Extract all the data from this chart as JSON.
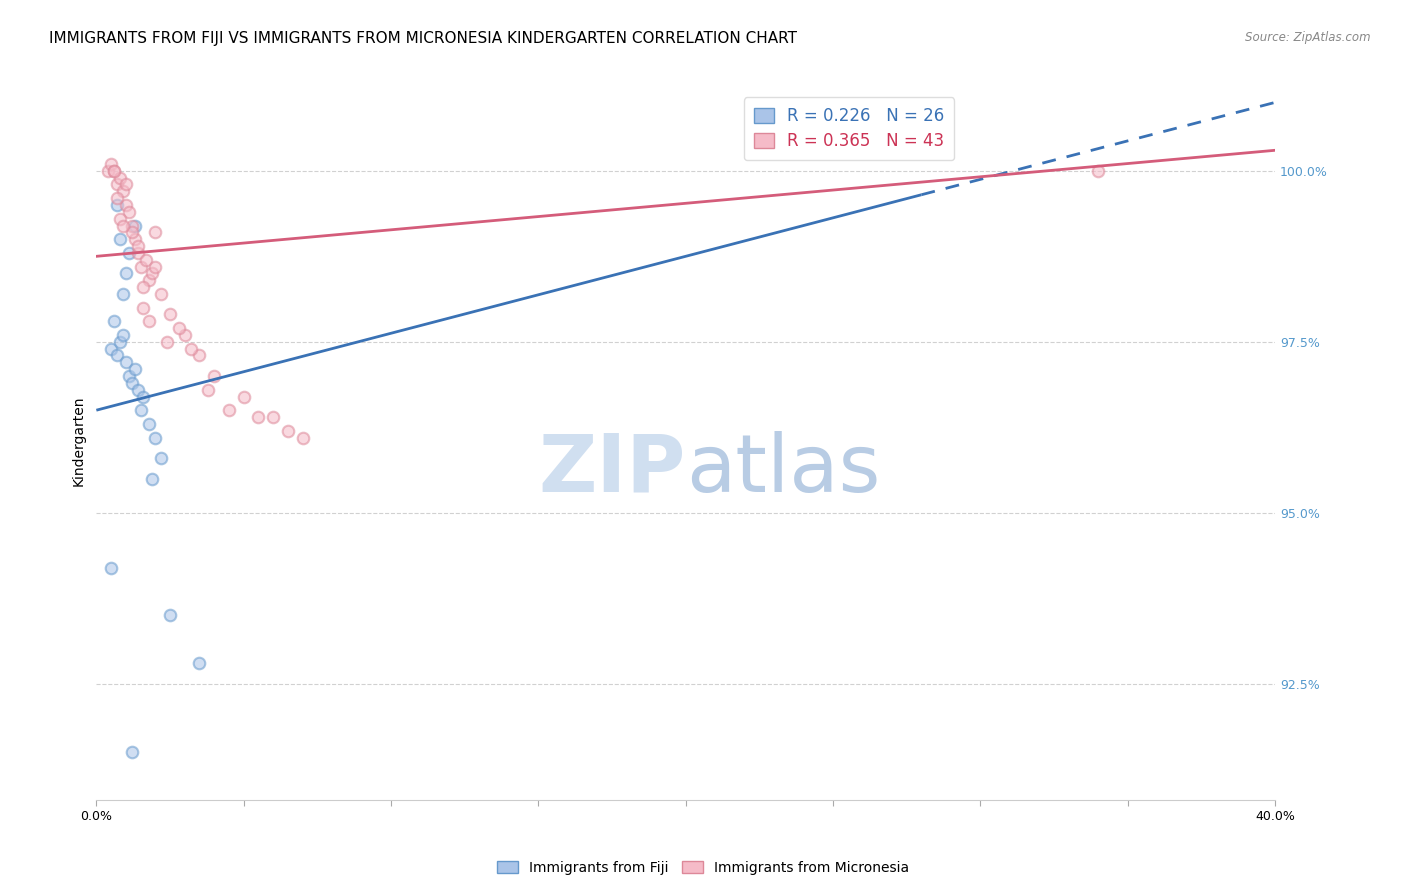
{
  "title": "IMMIGRANTS FROM FIJI VS IMMIGRANTS FROM MICRONESIA KINDERGARTEN CORRELATION CHART",
  "source": "Source: ZipAtlas.com",
  "ylabel": "Kindergarten",
  "ylabel_right_ticks": [
    100.0,
    97.5,
    95.0,
    92.5
  ],
  "ylabel_right_labels": [
    "100.0%",
    "97.5%",
    "95.0%",
    "92.5%"
  ],
  "xlim": [
    0.0,
    40.0
  ],
  "ylim": [
    90.8,
    101.3
  ],
  "fiji_color": "#6699cc",
  "fiji_face_color": "#aac4e8",
  "micronesia_color": "#dd8899",
  "micronesia_face_color": "#f5bbc8",
  "fiji_label": "Immigrants from Fiji",
  "micronesia_label": "Immigrants from Micronesia",
  "fiji_R": "0.226",
  "fiji_N": "26",
  "micronesia_R": "0.365",
  "micronesia_N": "43",
  "background_color": "#ffffff",
  "grid_color": "#cccccc",
  "fiji_scatter_x": [
    0.5,
    0.7,
    0.8,
    0.9,
    1.0,
    1.1,
    1.2,
    1.3,
    1.4,
    0.6,
    0.9,
    1.0,
    1.1,
    1.5,
    1.8,
    2.0,
    2.2,
    1.6,
    0.8,
    1.3,
    0.7,
    1.9,
    0.5,
    2.5,
    3.5,
    1.2
  ],
  "fiji_scatter_y": [
    97.4,
    97.3,
    97.5,
    97.6,
    97.2,
    97.0,
    96.9,
    97.1,
    96.8,
    97.8,
    98.2,
    98.5,
    98.8,
    96.5,
    96.3,
    96.1,
    95.8,
    96.7,
    99.0,
    99.2,
    99.5,
    95.5,
    94.2,
    93.5,
    92.8,
    91.5
  ],
  "micronesia_scatter_x": [
    0.4,
    0.5,
    0.6,
    0.7,
    0.8,
    0.9,
    1.0,
    1.1,
    1.2,
    1.3,
    1.4,
    1.5,
    1.8,
    2.0,
    2.2,
    2.5,
    3.0,
    3.5,
    4.0,
    5.0,
    6.0,
    7.0,
    1.6,
    1.7,
    1.9,
    2.8,
    3.2,
    0.6,
    0.7,
    0.8,
    1.0,
    1.2,
    1.4,
    1.6,
    1.8,
    2.0,
    2.4,
    3.8,
    4.5,
    6.5,
    5.5,
    34.0,
    0.9
  ],
  "micronesia_scatter_y": [
    100.0,
    100.1,
    100.0,
    99.8,
    99.9,
    99.7,
    99.5,
    99.4,
    99.2,
    99.0,
    98.8,
    98.6,
    98.4,
    99.1,
    98.2,
    97.9,
    97.6,
    97.3,
    97.0,
    96.7,
    96.4,
    96.1,
    98.0,
    98.7,
    98.5,
    97.7,
    97.4,
    100.0,
    99.6,
    99.3,
    99.8,
    99.1,
    98.9,
    98.3,
    97.8,
    98.6,
    97.5,
    96.8,
    96.5,
    96.2,
    96.4,
    100.0,
    99.2
  ],
  "fiji_line_x0": 0.0,
  "fiji_line_x1": 40.0,
  "fiji_line_y0": 96.5,
  "fiji_line_y1": 101.0,
  "fiji_line_solid_x1": 28.0,
  "fiji_line_dashed_x0": 28.0,
  "micronesia_line_x0": 0.0,
  "micronesia_line_x1": 40.0,
  "micronesia_line_y0": 98.75,
  "micronesia_line_y1": 100.3,
  "title_fontsize": 11,
  "axis_label_fontsize": 10,
  "tick_fontsize": 9,
  "legend_R_color_fiji": "#3399cc",
  "legend_N_color_fiji": "#3399cc",
  "legend_R_color_micro": "#cc4466",
  "legend_N_color_micro": "#3399cc",
  "right_axis_color": "#5599cc",
  "marker_size": 70,
  "marker_alpha": 0.55,
  "marker_linewidth": 1.5,
  "line_width": 2.0,
  "watermark_zip_color": "#d0dff0",
  "watermark_atlas_color": "#b8cce4"
}
